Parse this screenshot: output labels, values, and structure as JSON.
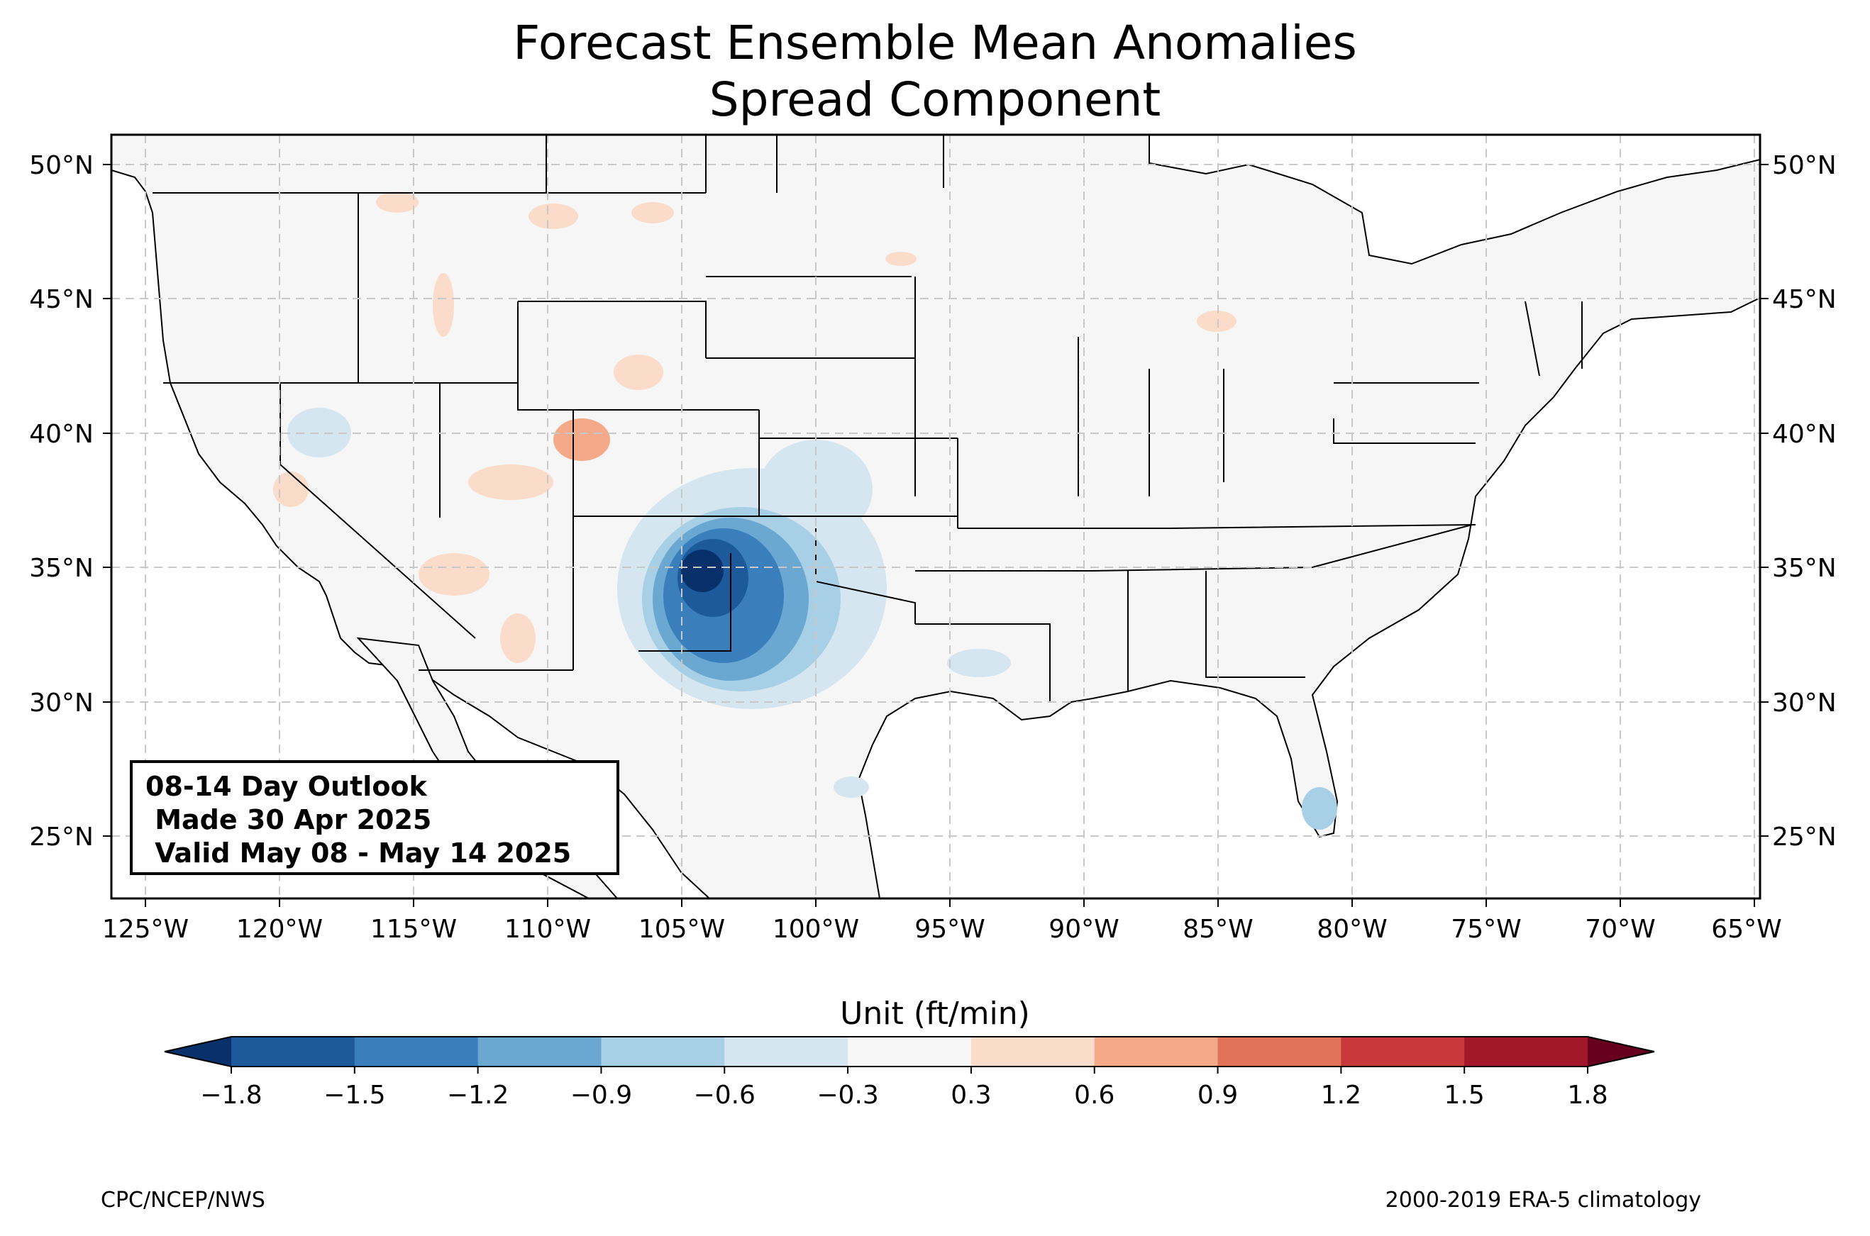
{
  "title": {
    "line1": "Forecast Ensemble Mean Anomalies",
    "line2": "Spread Component"
  },
  "outlook": {
    "line1": "08-14 Day Outlook",
    "line2": " Made 30 Apr 2025",
    "line3": " Valid May 08 - May 14 2025"
  },
  "axes": {
    "lat_ticks": [
      "50°N",
      "45°N",
      "40°N",
      "35°N",
      "30°N",
      "25°N"
    ],
    "lon_ticks": [
      "125°W",
      "120°W",
      "115°W",
      "110°W",
      "105°W",
      "100°W",
      "95°W",
      "90°W",
      "85°W",
      "80°W",
      "75°W",
      "70°W",
      "65°W"
    ]
  },
  "colorbar": {
    "label": "Unit (ft/min)",
    "ticks": [
      "−1.8",
      "−1.5",
      "−1.2",
      "−0.9",
      "−0.6",
      "−0.3",
      "0.3",
      "0.6",
      "0.9",
      "1.2",
      "1.5",
      "1.8"
    ],
    "colors": [
      "#08306b",
      "#1c5a9c",
      "#3a7ebb",
      "#6aa8d2",
      "#a7cfe5",
      "#d6e6f1",
      "#f7f7f7",
      "#fbdccb",
      "#f4aa88",
      "#e0735a",
      "#c6383a",
      "#a3172a",
      "#67001f"
    ]
  },
  "footer": {
    "left": "CPC/NCEP/NWS",
    "right": "2000-2019 ERA-5 climatology"
  },
  "map_colors": {
    "land": "#f5f6f5",
    "grid": "#c8c8c8",
    "state_lines": "#000000",
    "county_lines": "#8a8a8a"
  }
}
